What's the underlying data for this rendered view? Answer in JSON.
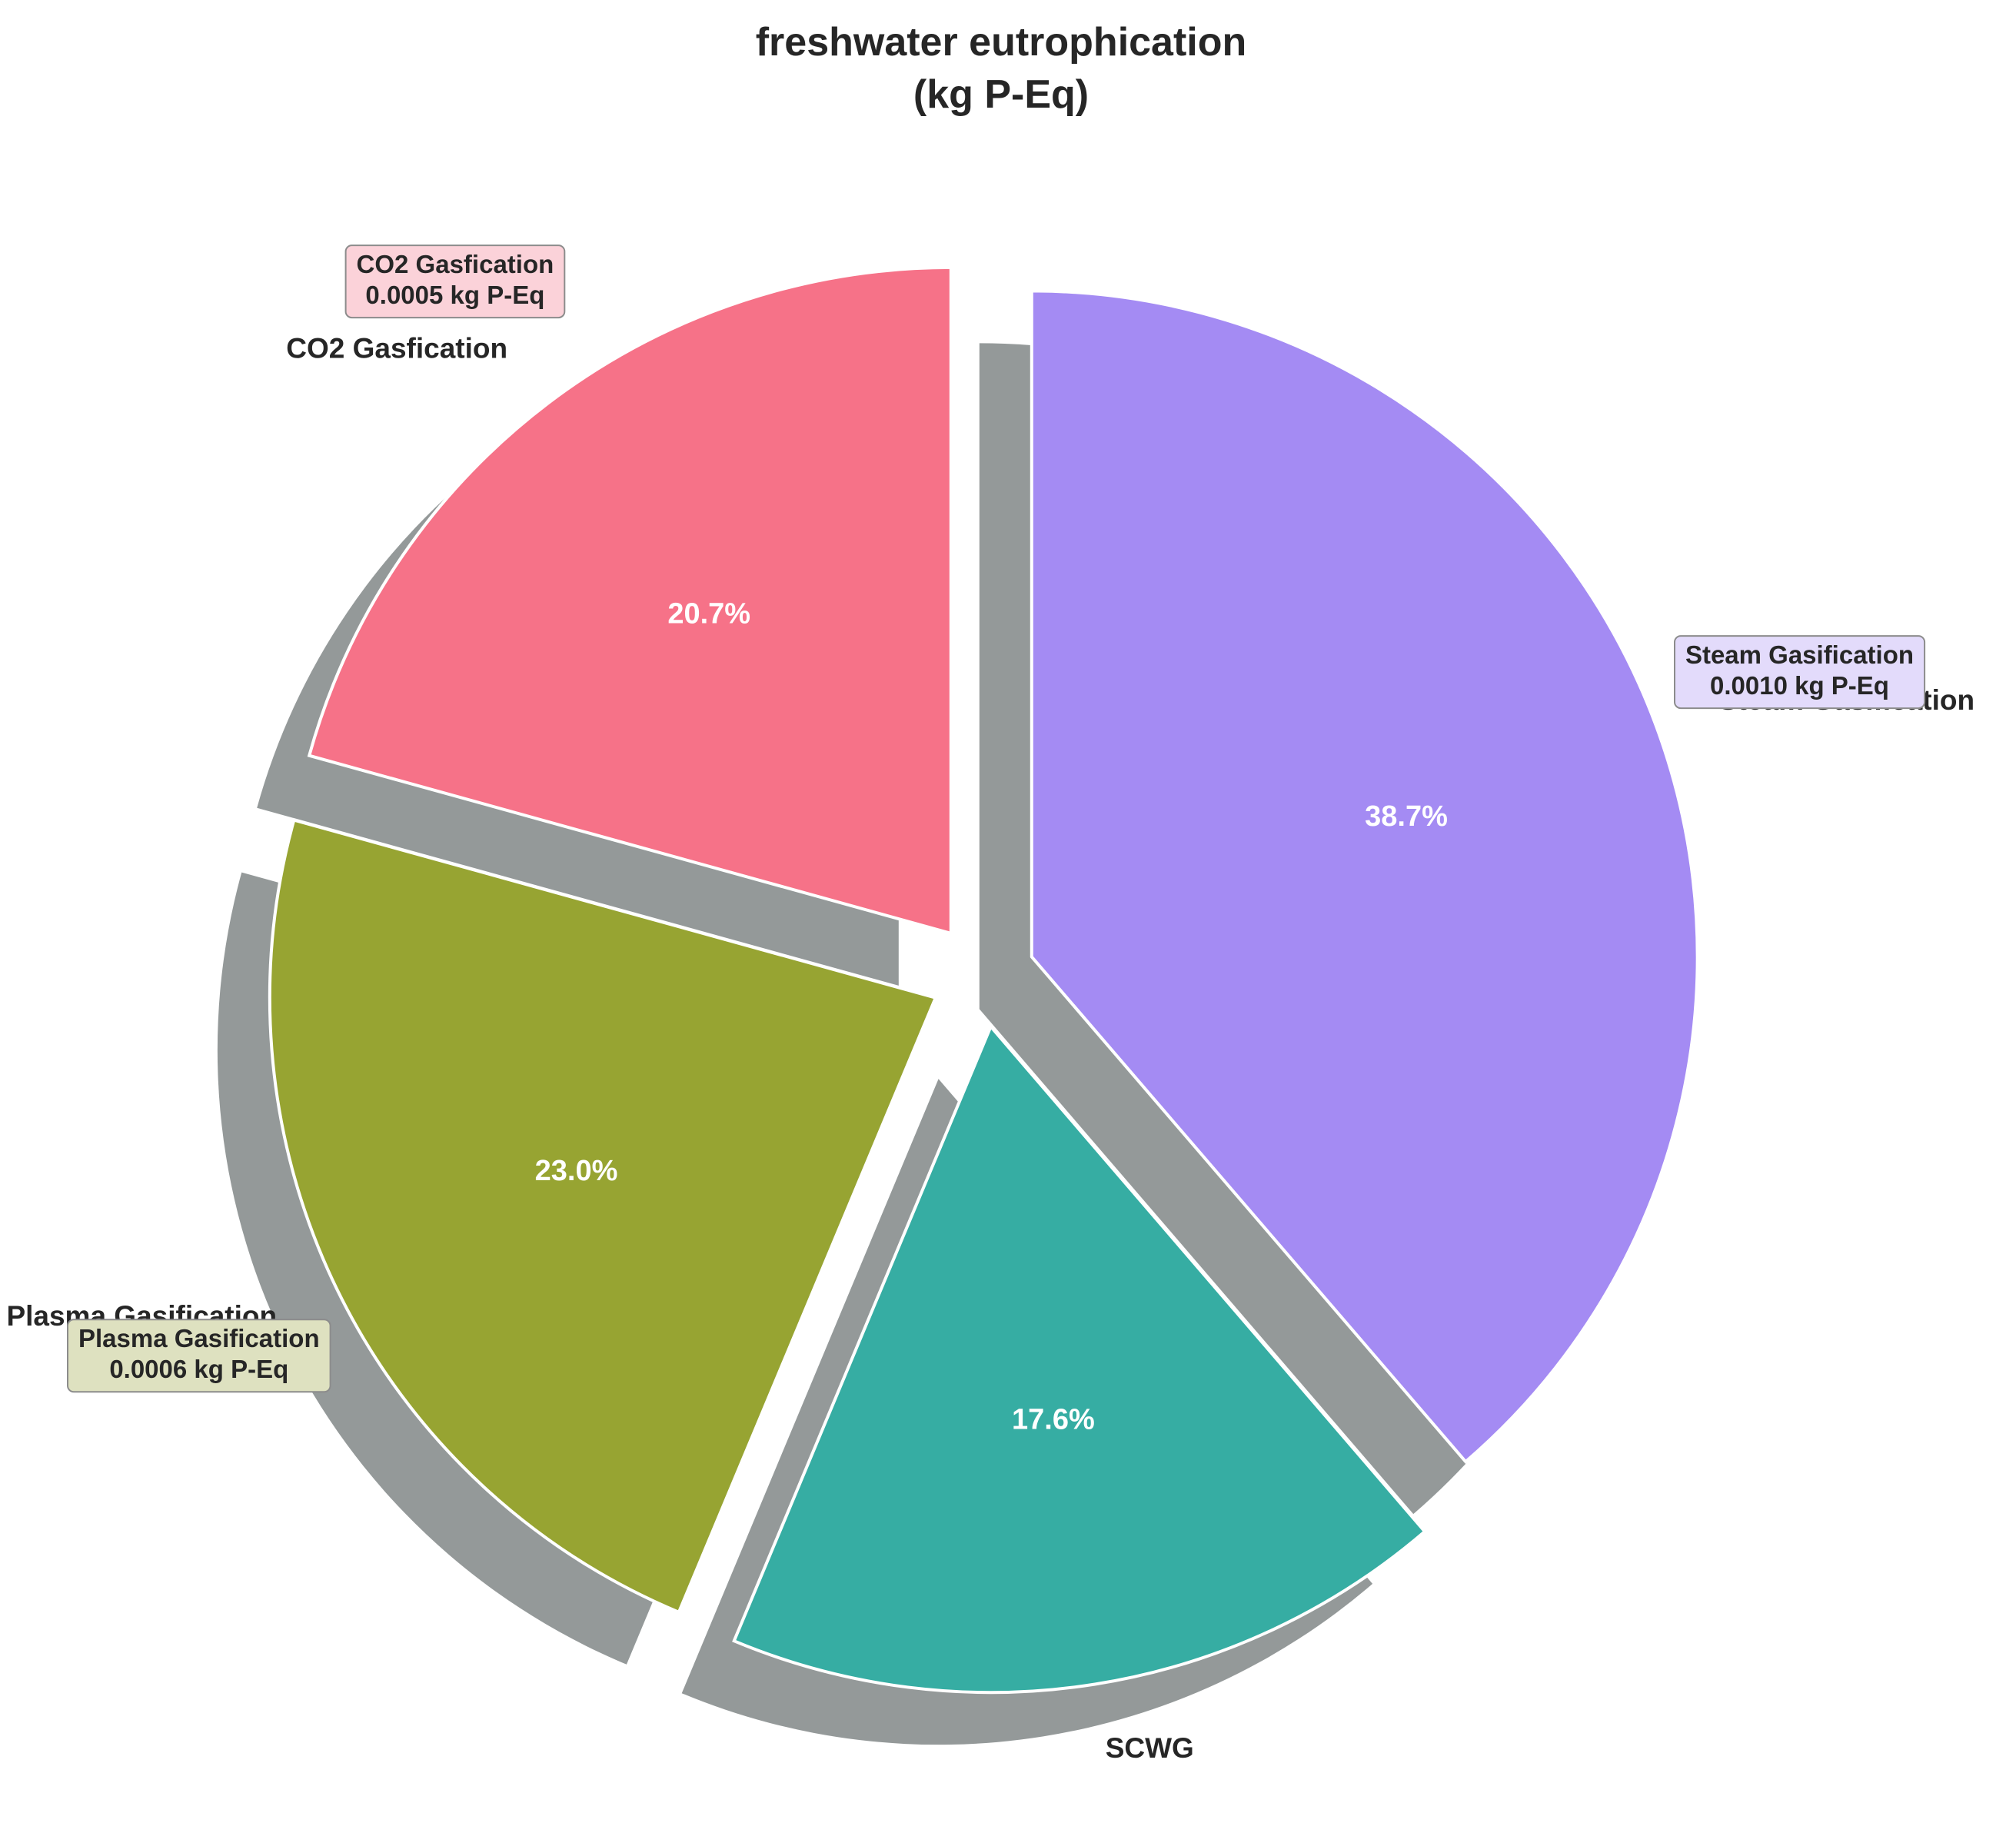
{
  "chart_data": {
    "type": "pie",
    "title": "freshwater eutrophication",
    "subtitle": "(kg P-Eq)",
    "unit": "kg P-Eq",
    "shadow_color": "#3c4646",
    "slices": [
      {
        "label": "CO2 Gasfication",
        "value": 0.0005,
        "percent": 20.7,
        "percent_label": "20.7%",
        "value_label": "0.0005 kg P-Eq",
        "color": "#f67288",
        "box_color": "#fbd2d9"
      },
      {
        "label": "Plasma Gasification",
        "value": 0.0006,
        "percent": 23.0,
        "percent_label": "23.0%",
        "value_label": "0.0006 kg P-Eq",
        "color": "#97a432",
        "box_color": "#dee1c0"
      },
      {
        "label": "SCWG",
        "value": 0.0004,
        "percent": 17.6,
        "percent_label": "17.6%",
        "value_label": "",
        "color": "#36ada3",
        "box_color": ""
      },
      {
        "label": "Steam Gasification",
        "value": 0.001,
        "percent": 38.7,
        "percent_label": "38.7%",
        "value_label": "0.0010 kg P-Eq",
        "color": "#a48bf3",
        "box_color": "#e3dbfb"
      }
    ]
  }
}
